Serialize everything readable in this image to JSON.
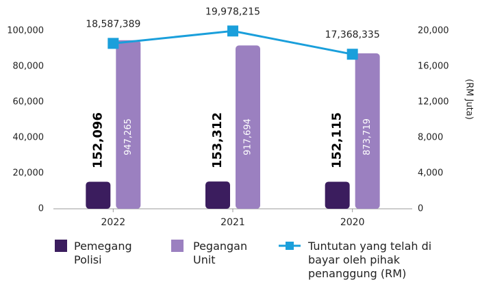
{
  "chart_data": {
    "type": "bar",
    "categories": [
      "2022",
      "2021",
      "2020"
    ],
    "ylim": [
      0,
      100000
    ],
    "yticks": [
      {
        "value": 0,
        "label": "0"
      },
      {
        "value": 20000,
        "label": "20,000"
      },
      {
        "value": 40000,
        "label": "40,000"
      },
      {
        "value": 60000,
        "label": "60,000"
      },
      {
        "value": 80000,
        "label": "80,000"
      },
      {
        "value": 100000,
        "label": "100,000"
      }
    ],
    "y2lim": [
      0,
      20000
    ],
    "y2ticks": [
      {
        "value": 0,
        "label": "0"
      },
      {
        "value": 4000,
        "label": "4,000"
      },
      {
        "value": 8000,
        "label": "8,000"
      },
      {
        "value": 12000,
        "label": "12,000"
      },
      {
        "value": 16000,
        "label": "16,000"
      },
      {
        "value": 20000,
        "label": "20,000"
      }
    ],
    "y2label": "(RM Juta)",
    "series": [
      {
        "name": "Pemegang Polisi",
        "type": "bar",
        "color": "#3b1d5e",
        "values": [
          15209.6,
          15331.2,
          15211.5
        ],
        "value_labels": [
          "152,096",
          "153,312",
          "152,115"
        ]
      },
      {
        "name": "Pegangan Unit",
        "type": "bar",
        "color": "#9b80c0",
        "values": [
          94726.5,
          91769.4,
          87371.9
        ],
        "value_labels": [
          "947,265",
          "917,694",
          "873,719"
        ]
      },
      {
        "name": "Tuntutan yang telah di bayar oleh pihak penanggung (RM)",
        "type": "line",
        "axis": "y2",
        "color": "#1a9fdb",
        "values": [
          18587.389,
          19978.215,
          17368.335
        ],
        "value_labels": [
          "18,587,389",
          "19,978,215",
          "17,368,335"
        ]
      }
    ]
  }
}
